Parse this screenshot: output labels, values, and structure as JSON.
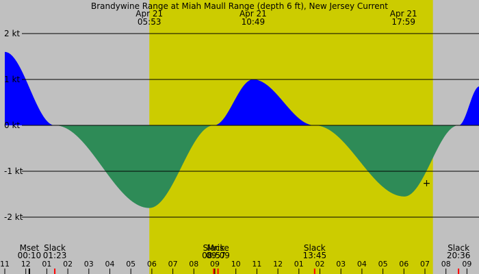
{
  "chart_data": {
    "type": "area",
    "title": "Brandywine Range at Miah Maull Range (depth 6 ft), New Jersey Current",
    "unit": "kt",
    "x_range_hours": [
      -1.0,
      21.6
    ],
    "ylim": [
      -2.7,
      2.6
    ],
    "grid": "horizontal",
    "colors": {
      "background": "#c0c0c0",
      "daylight": "#cccc00",
      "flood": "#0000ff",
      "ebb": "#2e8b57",
      "grid": "#000000",
      "moonrise_tick": "#ff0000",
      "moonset_tick": "#000000"
    },
    "daylight": {
      "start": 5.88,
      "end": 19.38
    },
    "y_ticks": [
      {
        "value": 2,
        "label": "2 kt"
      },
      {
        "value": 1,
        "label": "1 kt"
      },
      {
        "value": 0,
        "label": "0 kt"
      },
      {
        "value": -1,
        "label": "-1 kt"
      },
      {
        "value": -2,
        "label": "-2 kt"
      }
    ],
    "x_ticks": [
      {
        "hour": -1,
        "label": "11"
      },
      {
        "hour": 0,
        "label": "12"
      },
      {
        "hour": 1,
        "label": "01"
      },
      {
        "hour": 2,
        "label": "02"
      },
      {
        "hour": 3,
        "label": "03"
      },
      {
        "hour": 4,
        "label": "04"
      },
      {
        "hour": 5,
        "label": "05"
      },
      {
        "hour": 6,
        "label": "06"
      },
      {
        "hour": 7,
        "label": "07"
      },
      {
        "hour": 8,
        "label": "08"
      },
      {
        "hour": 9,
        "label": "09"
      },
      {
        "hour": 10,
        "label": "10"
      },
      {
        "hour": 11,
        "label": "11"
      },
      {
        "hour": 12,
        "label": "12"
      },
      {
        "hour": 13,
        "label": "01"
      },
      {
        "hour": 14,
        "label": "02"
      },
      {
        "hour": 15,
        "label": "03"
      },
      {
        "hour": 16,
        "label": "04"
      },
      {
        "hour": 17,
        "label": "05"
      },
      {
        "hour": 18,
        "label": "06"
      },
      {
        "hour": 19,
        "label": "07"
      },
      {
        "hour": 20,
        "label": "08"
      },
      {
        "hour": 21,
        "label": "09"
      }
    ],
    "top_events": [
      {
        "date": "Apr 21",
        "time": "05:53",
        "hour": 5.88
      },
      {
        "date": "Apr 21",
        "time": "10:49",
        "hour": 10.82
      },
      {
        "date": "Apr 21",
        "time": "17:59",
        "hour": 17.98
      }
    ],
    "bottom_events": [
      {
        "name": "Mset",
        "time": "00:10",
        "hour": 0.17
      },
      {
        "name": "Slack",
        "time": "01:23",
        "hour": 1.38
      },
      {
        "name": "Slack",
        "time": "08:57",
        "hour": 8.95
      },
      {
        "name": "Mrise",
        "time": "09:09",
        "hour": 9.15
      },
      {
        "name": "Slack",
        "time": "13:45",
        "hour": 13.75
      },
      {
        "name": "Slack",
        "time": "20:36",
        "hour": 20.6
      }
    ],
    "curve_points": [
      {
        "hour": -1.0,
        "speed": 1.6
      },
      {
        "hour": 1.38,
        "speed": 0.0
      },
      {
        "hour": 5.88,
        "speed": -1.8
      },
      {
        "hour": 8.95,
        "speed": 0.0
      },
      {
        "hour": 10.82,
        "speed": 1.0
      },
      {
        "hour": 13.75,
        "speed": 0.0
      },
      {
        "hour": 18.02,
        "speed": -1.55
      },
      {
        "hour": 20.6,
        "speed": 0.0
      },
      {
        "hour": 21.6,
        "speed": 0.85
      }
    ],
    "current_marker": {
      "hour": 19.08,
      "speed": -1.25,
      "symbol": "+"
    }
  }
}
